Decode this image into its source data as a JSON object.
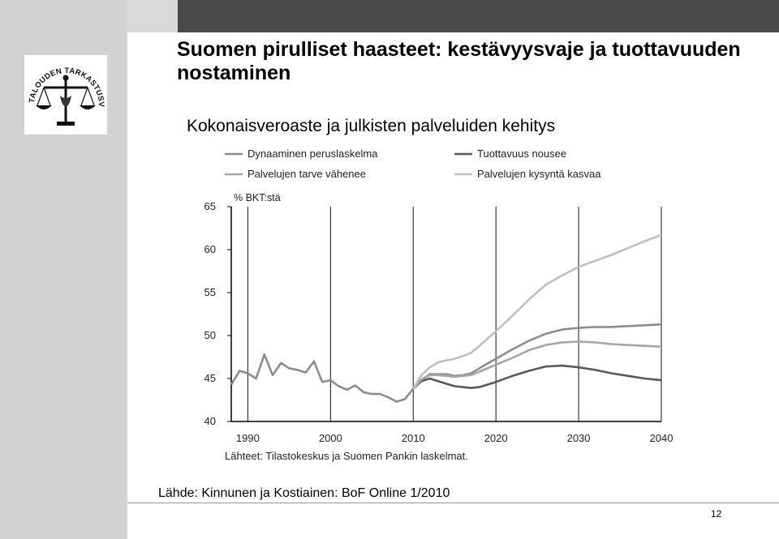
{
  "slide": {
    "title": "Suomen pirulliset haasteet: kestävyysvaje ja tuottavuuden nostaminen",
    "source": "Lähde: Kinnunen ja Kostiainen: BoF Online 1/2010",
    "page_number": "12",
    "logo": {
      "text": "VALTIONTALOUDEN TARKASTUSVIRASTO",
      "icon": "scales-of-justice-icon"
    }
  },
  "chart_data": {
    "type": "line",
    "title": "Kokonaisveroaste ja julkisten palveluiden kehitys",
    "ylabel": "% BKT:stä",
    "xlabel": "",
    "source_note": "Lähteet: Tilastokeskus ja Suomen Pankin laskelmat.",
    "xlim": [
      1988,
      2040
    ],
    "ylim": [
      40,
      65
    ],
    "xticks": [
      "1990",
      "2000",
      "2010",
      "2020",
      "2030",
      "2040"
    ],
    "yticks": [
      "40",
      "45",
      "50",
      "55",
      "60",
      "65"
    ],
    "grid": "vertical",
    "legend_position": "top",
    "series": [
      {
        "name": "Dynaaminen peruslaskelma",
        "color": "#8c8c8c",
        "points": [
          [
            1988,
            44.3
          ],
          [
            1989,
            45.9
          ],
          [
            1990,
            45.6
          ],
          [
            1991,
            45.0
          ],
          [
            1992,
            47.8
          ],
          [
            1993,
            45.4
          ],
          [
            1994,
            46.8
          ],
          [
            1995,
            46.2
          ],
          [
            1996,
            46.0
          ],
          [
            1997,
            45.7
          ],
          [
            1998,
            47.0
          ],
          [
            1999,
            44.6
          ],
          [
            2000,
            44.8
          ],
          [
            2001,
            44.1
          ],
          [
            2002,
            43.7
          ],
          [
            2003,
            44.2
          ],
          [
            2004,
            43.4
          ],
          [
            2005,
            43.2
          ],
          [
            2006,
            43.2
          ],
          [
            2007,
            42.8
          ],
          [
            2008,
            42.3
          ],
          [
            2009,
            42.6
          ],
          [
            2010,
            43.8
          ],
          [
            2011,
            44.8
          ],
          [
            2012,
            45.5
          ],
          [
            2013,
            45.5
          ],
          [
            2014,
            45.5
          ],
          [
            2015,
            45.3
          ],
          [
            2016,
            45.4
          ],
          [
            2017,
            45.6
          ],
          [
            2018,
            46.2
          ],
          [
            2020,
            47.3
          ],
          [
            2022,
            48.4
          ],
          [
            2024,
            49.4
          ],
          [
            2026,
            50.2
          ],
          [
            2028,
            50.7
          ],
          [
            2030,
            50.9
          ],
          [
            2032,
            51.0
          ],
          [
            2034,
            51.0
          ],
          [
            2036,
            51.1
          ],
          [
            2038,
            51.2
          ],
          [
            2040,
            51.3
          ]
        ]
      },
      {
        "name": "Tuottavuus nousee",
        "color": "#595959",
        "points": [
          [
            2010,
            43.8
          ],
          [
            2011,
            44.7
          ],
          [
            2012,
            45.0
          ],
          [
            2013,
            44.7
          ],
          [
            2014,
            44.4
          ],
          [
            2015,
            44.1
          ],
          [
            2016,
            44.0
          ],
          [
            2017,
            43.9
          ],
          [
            2018,
            44.0
          ],
          [
            2020,
            44.6
          ],
          [
            2022,
            45.3
          ],
          [
            2024,
            45.9
          ],
          [
            2026,
            46.4
          ],
          [
            2028,
            46.5
          ],
          [
            2030,
            46.3
          ],
          [
            2032,
            46.0
          ],
          [
            2034,
            45.6
          ],
          [
            2036,
            45.3
          ],
          [
            2038,
            45.0
          ],
          [
            2040,
            44.8
          ]
        ]
      },
      {
        "name": "Palvelujen tarve vähenee",
        "color": "#a6a6a6",
        "points": [
          [
            2010,
            43.8
          ],
          [
            2011,
            44.9
          ],
          [
            2012,
            45.4
          ],
          [
            2013,
            45.4
          ],
          [
            2014,
            45.3
          ],
          [
            2015,
            45.2
          ],
          [
            2016,
            45.3
          ],
          [
            2017,
            45.4
          ],
          [
            2018,
            45.8
          ],
          [
            2020,
            46.6
          ],
          [
            2022,
            47.4
          ],
          [
            2024,
            48.3
          ],
          [
            2026,
            48.9
          ],
          [
            2028,
            49.2
          ],
          [
            2030,
            49.3
          ],
          [
            2032,
            49.2
          ],
          [
            2034,
            49.0
          ],
          [
            2036,
            48.9
          ],
          [
            2038,
            48.8
          ],
          [
            2040,
            48.7
          ]
        ]
      },
      {
        "name": "Palvelujen kysyntä kasvaa",
        "color": "#bfbfbf",
        "points": [
          [
            2010,
            43.8
          ],
          [
            2011,
            45.4
          ],
          [
            2012,
            46.3
          ],
          [
            2013,
            46.9
          ],
          [
            2014,
            47.1
          ],
          [
            2015,
            47.3
          ],
          [
            2016,
            47.6
          ],
          [
            2017,
            48.0
          ],
          [
            2018,
            48.8
          ],
          [
            2020,
            50.5
          ],
          [
            2022,
            52.3
          ],
          [
            2024,
            54.2
          ],
          [
            2026,
            55.9
          ],
          [
            2028,
            57.0
          ],
          [
            2030,
            58.0
          ],
          [
            2032,
            58.7
          ],
          [
            2034,
            59.4
          ],
          [
            2036,
            60.2
          ],
          [
            2038,
            61.0
          ],
          [
            2040,
            61.7
          ]
        ]
      }
    ]
  }
}
